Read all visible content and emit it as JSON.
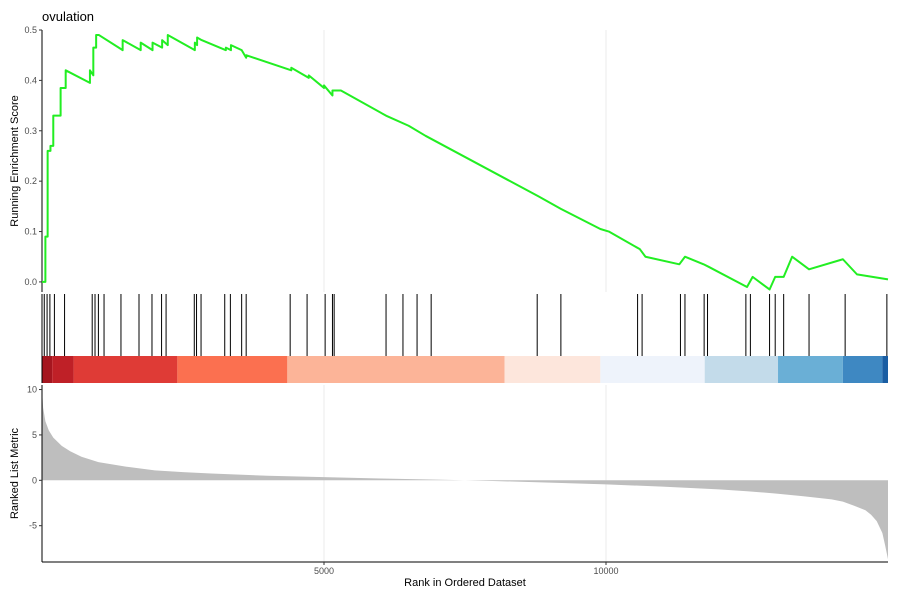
{
  "chart_data": {
    "type": "line",
    "title": "ovulation",
    "xlabel": "Rank in Ordered Dataset",
    "xlim": [
      0,
      15000
    ],
    "x_ticks": [
      5000,
      10000
    ],
    "grid": "vertical",
    "panels": {
      "running_es": {
        "ylabel": "Running Enrichment Score",
        "ylim": [
          -0.02,
          0.5
        ],
        "y_ticks": [
          0.0,
          0.1,
          0.2,
          0.3,
          0.4,
          0.5
        ],
        "y_tick_labels": [
          "0.0",
          "0.1",
          "0.2",
          "0.3",
          "0.4",
          "0.5"
        ],
        "line_color": "#22ee22",
        "series": [
          {
            "x": [
              0,
              60,
              60,
              100,
              100,
              150,
              150,
              200,
              200,
              220,
              220,
              330,
              330,
              420,
              420,
              850,
              850,
              910,
              910,
              960,
              960,
              1010,
              1010,
              1430,
              1430,
              1750,
              1750,
              1960,
              1960,
              2130,
              2130,
              2230,
              2230,
              2710,
              2710,
              2750,
              2750,
              2830,
              2830,
              3260,
              3260,
              3350,
              3350,
              3540,
              3540,
              3620,
              3620,
              4420,
              4420,
              4730,
              4730,
              5000,
              5000,
              5150,
              5150,
              5300,
              5300,
              6100,
              6100,
              6500,
              6500,
              6800,
              6800,
              8800,
              8800,
              9200,
              9200,
              9900,
              9900,
              10050,
              10050,
              10600,
              10600,
              10700,
              10700,
              11300,
              11300,
              11400,
              11400,
              11730,
              11730,
              11820,
              11820,
              12500,
              12500,
              12600,
              12600,
              12900,
              12900,
              13000,
              13000,
              13150,
              13150,
              13300,
              13300,
              13600,
              13600,
              14200,
              14200,
              14450,
              14450,
              15000
            ],
            "y": [
              0,
              0,
              0.09,
              0.09,
              0.26,
              0.26,
              0.27,
              0.27,
              0.33,
              0.33,
              0.33,
              0.33,
              0.385,
              0.385,
              0.42,
              0.395,
              0.42,
              0.41,
              0.465,
              0.465,
              0.49,
              0.49,
              0.49,
              0.46,
              0.48,
              0.46,
              0.475,
              0.46,
              0.475,
              0.465,
              0.48,
              0.47,
              0.49,
              0.46,
              0.475,
              0.47,
              0.485,
              0.48,
              0.48,
              0.46,
              0.465,
              0.46,
              0.47,
              0.46,
              0.46,
              0.445,
              0.45,
              0.42,
              0.425,
              0.405,
              0.41,
              0.385,
              0.39,
              0.37,
              0.38,
              0.38,
              0.38,
              0.33,
              0.33,
              0.31,
              0.31,
              0.29,
              0.29,
              0.17,
              0.17,
              0.145,
              0.145,
              0.105,
              0.105,
              0.1,
              0.1,
              0.065,
              0.065,
              0.05,
              0.05,
              0.035,
              0.035,
              0.05,
              0.05,
              0.035,
              0.035,
              0.03,
              0.03,
              -0.01,
              -0.01,
              0.01,
              0.01,
              -0.015,
              -0.015,
              0.01,
              0.01,
              0.01,
              0.01,
              0.05,
              0.05,
              0.025,
              0.025,
              0.045,
              0.045,
              0.015,
              0.015,
              0.005
            ]
          }
        ]
      },
      "hits": {
        "positions": [
          40,
          90,
          140,
          220,
          400,
          890,
          940,
          1000,
          1100,
          1400,
          1720,
          1950,
          2120,
          2200,
          2700,
          2740,
          2820,
          3240,
          3340,
          3540,
          3620,
          4400,
          4700,
          5020,
          5150,
          5180,
          6100,
          6400,
          6650,
          6900,
          8780,
          9200,
          10560,
          10640,
          11320,
          11400,
          11740,
          11800,
          12480,
          12560,
          12900,
          13000,
          13150,
          13600,
          14240,
          14980
        ],
        "bands": [
          {
            "from": 0,
            "to": 180,
            "color": "#a5161f"
          },
          {
            "from": 180,
            "to": 560,
            "color": "#bf2027"
          },
          {
            "from": 560,
            "to": 2400,
            "color": "#df3b36"
          },
          {
            "from": 2400,
            "to": 4350,
            "color": "#fb7050"
          },
          {
            "from": 4350,
            "to": 8200,
            "color": "#fcb498"
          },
          {
            "from": 8200,
            "to": 9900,
            "color": "#fde6dc"
          },
          {
            "from": 9900,
            "to": 11750,
            "color": "#eef3fb"
          },
          {
            "from": 11750,
            "to": 13050,
            "color": "#c3dbea"
          },
          {
            "from": 13050,
            "to": 14200,
            "color": "#6aafd6"
          },
          {
            "from": 14200,
            "to": 14900,
            "color": "#3e88c2"
          },
          {
            "from": 14900,
            "to": 15000,
            "color": "#1a5ea3"
          }
        ]
      },
      "ranked_metric": {
        "ylabel": "Ranked List Metric",
        "ylim": [
          -9,
          10.5
        ],
        "y_ticks": [
          -5,
          0,
          5,
          10
        ],
        "y_tick_labels": [
          "-5",
          "0",
          "5",
          "10"
        ],
        "fill_color": "#bebebe",
        "x": [
          0,
          20,
          60,
          120,
          200,
          350,
          500,
          700,
          1000,
          1500,
          2000,
          2500,
          3000,
          4000,
          5000,
          6000,
          7000,
          7500,
          8000,
          9000,
          10000,
          11000,
          11500,
          12000,
          12500,
          13000,
          13500,
          14000,
          14200,
          14400,
          14600,
          14700,
          14800,
          14900,
          14950,
          15000
        ],
        "values": [
          10,
          8,
          6.5,
          5.5,
          4.7,
          3.8,
          3.2,
          2.6,
          2.0,
          1.5,
          1.1,
          0.9,
          0.75,
          0.5,
          0.35,
          0.2,
          0.08,
          0,
          -0.08,
          -0.25,
          -0.45,
          -0.7,
          -0.85,
          -1.0,
          -1.2,
          -1.45,
          -1.75,
          -2.1,
          -2.35,
          -2.8,
          -3.3,
          -3.8,
          -4.5,
          -5.8,
          -7.2,
          -8.7
        ]
      }
    }
  }
}
